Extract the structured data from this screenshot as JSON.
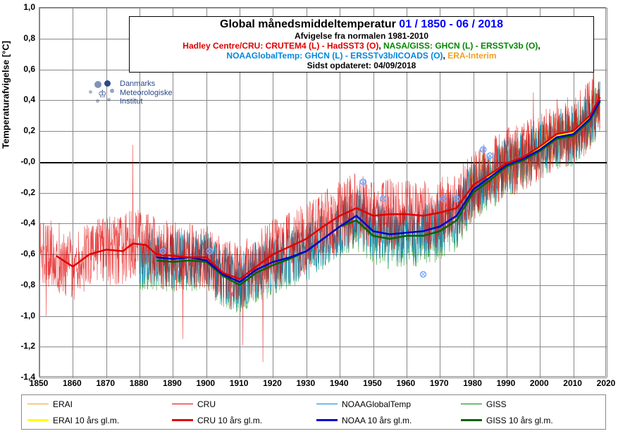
{
  "title": {
    "main": "Global månedsmiddeltemperatur ",
    "range": "01 / 1850 - 06 / 2018",
    "baseline": "Afvigelse fra normalen 1981-2010",
    "sources_line1_a": "Hadley Centre/CRU: CRUTEM4 (L) - HadSST3 (O)",
    "sources_line1_b": "NASA/GISS: GHCN (L) - ERSSTv3b (O)",
    "sources_line2_a": "NOAAGlobalTemp: GHCN (L) - ERSSTv3b/ICOADS (O)",
    "sources_line2_b": "ERA-Interim",
    "updated": "Sidst opdateret: 04/09/2018"
  },
  "axes": {
    "y_title": "Temperaturafvigelse    [°C]",
    "xlim": [
      1850,
      2020
    ],
    "ylim": [
      -1.4,
      1.0
    ],
    "xtick_step": 10,
    "ytick_step": 0.2
  },
  "logo": {
    "line1": "Danmarks",
    "line2": "Meteorologiske",
    "line3": "Institut"
  },
  "colors": {
    "erai": "#f0a020",
    "cru": "#e00000",
    "noaa": "#0088dd",
    "giss": "#008800",
    "erai_smooth": "#ffff00",
    "cru_smooth": "#e00000",
    "noaa_smooth": "#0000cc",
    "giss_smooth": "#006600",
    "grid": "#888888",
    "zero": "#000000",
    "bg": "#ffffff"
  },
  "legend": {
    "items": [
      {
        "label": "ERAI",
        "colorKey": "erai",
        "thick": false
      },
      {
        "label": "CRU",
        "colorKey": "cru",
        "thick": false
      },
      {
        "label": "NOAAGlobalTemp",
        "colorKey": "noaa",
        "thick": false
      },
      {
        "label": "GISS",
        "colorKey": "giss",
        "thick": false
      },
      {
        "label": "ERAI 10 års gl.m.",
        "colorKey": "erai_smooth",
        "thick": true
      },
      {
        "label": "CRU 10 års gl.m.",
        "colorKey": "cru_smooth",
        "thick": true
      },
      {
        "label": "NOAA 10 års gl.m.",
        "colorKey": "noaa_smooth",
        "thick": true
      },
      {
        "label": "GISS 10 års gl.m.",
        "colorKey": "giss_smooth",
        "thick": true
      }
    ]
  },
  "series_smooth": {
    "cru": [
      [
        1855,
        -0.61
      ],
      [
        1860,
        -0.68
      ],
      [
        1865,
        -0.6
      ],
      [
        1870,
        -0.57
      ],
      [
        1875,
        -0.58
      ],
      [
        1878,
        -0.53
      ],
      [
        1882,
        -0.54
      ],
      [
        1885,
        -0.6
      ],
      [
        1890,
        -0.61
      ],
      [
        1895,
        -0.62
      ],
      [
        1900,
        -0.62
      ],
      [
        1905,
        -0.72
      ],
      [
        1910,
        -0.76
      ],
      [
        1915,
        -0.68
      ],
      [
        1920,
        -0.6
      ],
      [
        1925,
        -0.55
      ],
      [
        1930,
        -0.5
      ],
      [
        1935,
        -0.42
      ],
      [
        1940,
        -0.35
      ],
      [
        1945,
        -0.3
      ],
      [
        1950,
        -0.35
      ],
      [
        1955,
        -0.34
      ],
      [
        1960,
        -0.34
      ],
      [
        1965,
        -0.35
      ],
      [
        1970,
        -0.33
      ],
      [
        1975,
        -0.3
      ],
      [
        1980,
        -0.15
      ],
      [
        1985,
        -0.08
      ],
      [
        1990,
        -0.01
      ],
      [
        1995,
        0.03
      ],
      [
        2000,
        0.1
      ],
      [
        2005,
        0.18
      ],
      [
        2010,
        0.2
      ],
      [
        2015,
        0.3
      ],
      [
        2018,
        0.42
      ]
    ],
    "noaa": [
      [
        1885,
        -0.62
      ],
      [
        1890,
        -0.63
      ],
      [
        1895,
        -0.62
      ],
      [
        1900,
        -0.64
      ],
      [
        1905,
        -0.73
      ],
      [
        1910,
        -0.78
      ],
      [
        1915,
        -0.7
      ],
      [
        1920,
        -0.65
      ],
      [
        1925,
        -0.62
      ],
      [
        1930,
        -0.58
      ],
      [
        1935,
        -0.5
      ],
      [
        1940,
        -0.42
      ],
      [
        1945,
        -0.35
      ],
      [
        1950,
        -0.45
      ],
      [
        1955,
        -0.47
      ],
      [
        1960,
        -0.46
      ],
      [
        1965,
        -0.45
      ],
      [
        1970,
        -0.42
      ],
      [
        1975,
        -0.35
      ],
      [
        1980,
        -0.18
      ],
      [
        1985,
        -0.1
      ],
      [
        1990,
        -0.02
      ],
      [
        1995,
        0.02
      ],
      [
        2000,
        0.08
      ],
      [
        2005,
        0.16
      ],
      [
        2010,
        0.18
      ],
      [
        2015,
        0.28
      ],
      [
        2018,
        0.4
      ]
    ],
    "giss": [
      [
        1885,
        -0.64
      ],
      [
        1890,
        -0.65
      ],
      [
        1895,
        -0.64
      ],
      [
        1900,
        -0.65
      ],
      [
        1905,
        -0.74
      ],
      [
        1910,
        -0.8
      ],
      [
        1915,
        -0.72
      ],
      [
        1920,
        -0.67
      ],
      [
        1925,
        -0.63
      ],
      [
        1930,
        -0.58
      ],
      [
        1935,
        -0.5
      ],
      [
        1940,
        -0.42
      ],
      [
        1945,
        -0.38
      ],
      [
        1950,
        -0.48
      ],
      [
        1955,
        -0.5
      ],
      [
        1960,
        -0.48
      ],
      [
        1965,
        -0.48
      ],
      [
        1970,
        -0.45
      ],
      [
        1975,
        -0.38
      ],
      [
        1980,
        -0.2
      ],
      [
        1985,
        -0.12
      ],
      [
        1990,
        -0.03
      ],
      [
        1995,
        0.01
      ],
      [
        2000,
        0.07
      ],
      [
        2005,
        0.15
      ],
      [
        2010,
        0.17
      ],
      [
        2015,
        0.27
      ],
      [
        2018,
        0.39
      ]
    ],
    "erai": [
      [
        1984,
        -0.1
      ],
      [
        1990,
        -0.02
      ],
      [
        1995,
        0.02
      ],
      [
        2000,
        0.09
      ],
      [
        2005,
        0.17
      ],
      [
        2010,
        0.19
      ],
      [
        2015,
        0.29
      ],
      [
        2018,
        0.4
      ]
    ]
  },
  "series_monthly": {
    "cru": {
      "start": 1850,
      "end": 2018,
      "baseKey": "cru",
      "amp": 0.23
    },
    "noaa": {
      "start": 1880,
      "end": 2018,
      "baseKey": "noaa",
      "amp": 0.19
    },
    "giss": {
      "start": 1880,
      "end": 2018,
      "baseKey": "giss",
      "amp": 0.2
    },
    "erai": {
      "start": 1979,
      "end": 2018,
      "baseKey": "erai",
      "amp": 0.15
    }
  },
  "outlier_spikes": [
    {
      "year": 1852,
      "val": -1.0,
      "series": "cru"
    },
    {
      "year": 1878,
      "val": 0.11,
      "series": "cru"
    },
    {
      "year": 1893,
      "val": -1.15,
      "series": "cru"
    },
    {
      "year": 1911,
      "val": -1.19,
      "series": "cru"
    },
    {
      "year": 1917,
      "val": -1.3,
      "series": "cru"
    },
    {
      "year": 2016,
      "val": 0.82,
      "series": "cru"
    },
    {
      "year": 2016.1,
      "val": 0.65,
      "series": "giss"
    },
    {
      "year": 1998,
      "val": 0.45,
      "series": "cru"
    }
  ],
  "markers": [
    {
      "year": 1887,
      "val": -0.58
    },
    {
      "year": 1901,
      "val": -0.58
    },
    {
      "year": 1947,
      "val": -0.13
    },
    {
      "year": 1953,
      "val": -0.24
    },
    {
      "year": 1965,
      "val": -0.73
    },
    {
      "year": 1971,
      "val": -0.24
    },
    {
      "year": 1975,
      "val": -0.24
    },
    {
      "year": 1983,
      "val": 0.08
    },
    {
      "year": 1985,
      "val": 0.04
    }
  ]
}
